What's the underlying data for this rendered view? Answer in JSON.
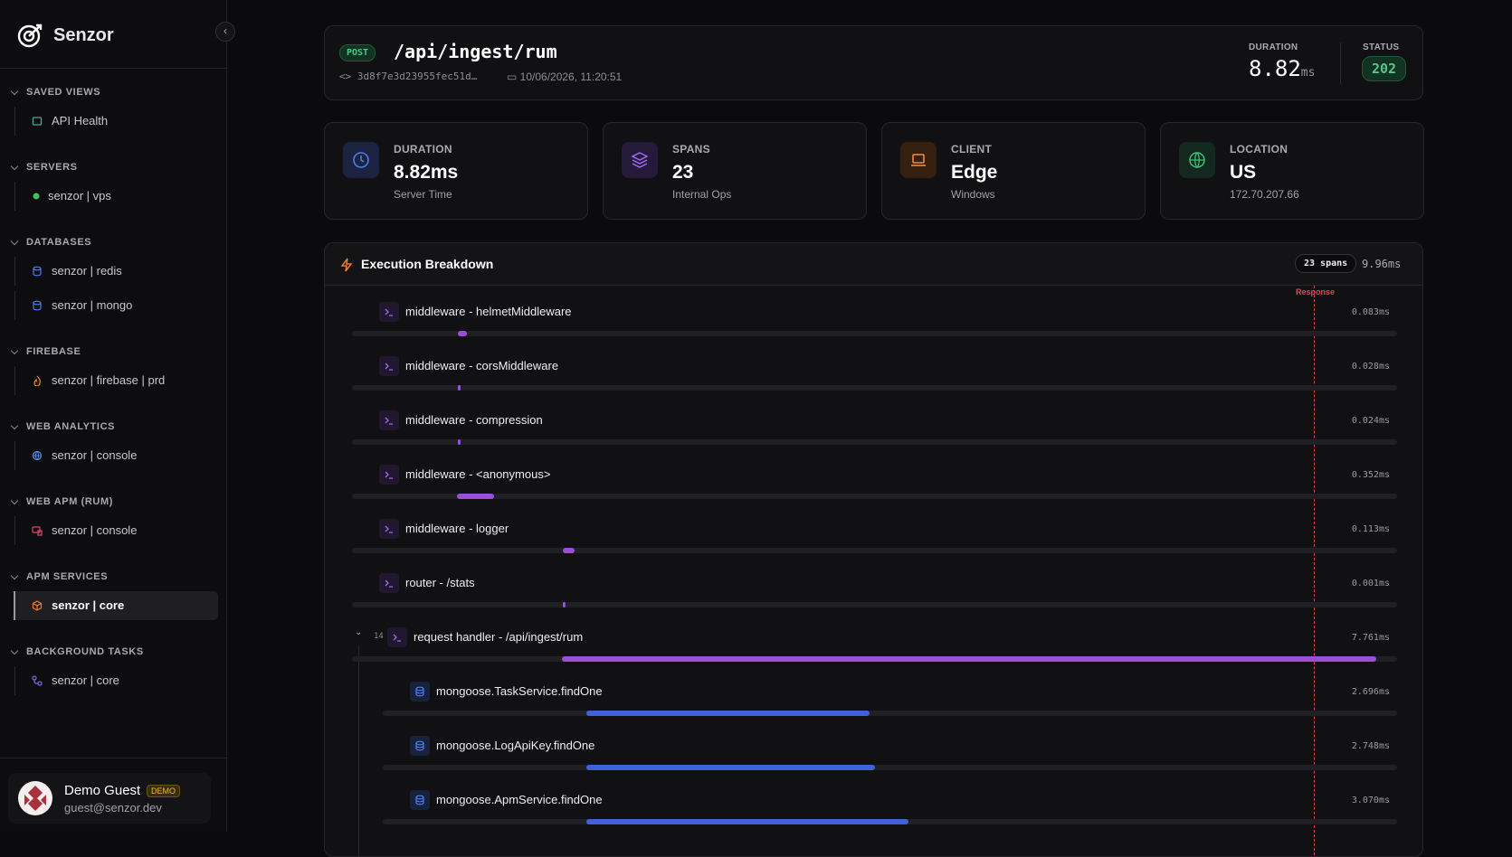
{
  "sidebar": {
    "brand": "Senzor",
    "sections": [
      {
        "title": "SAVED VIEWS",
        "items": [
          {
            "label": "API Health"
          }
        ]
      },
      {
        "title": "SERVERS",
        "items": [
          {
            "label": "senzor | vps"
          }
        ]
      },
      {
        "title": "DATABASES",
        "items": [
          {
            "label": "senzor | redis"
          },
          {
            "label": "senzor | mongo"
          }
        ]
      },
      {
        "title": "FIREBASE",
        "items": [
          {
            "label": "senzor | firebase | prd"
          }
        ]
      },
      {
        "title": "WEB ANALYTICS",
        "items": [
          {
            "label": "senzor | console"
          }
        ]
      },
      {
        "title": "WEB APM (RUM)",
        "items": [
          {
            "label": "senzor | console"
          }
        ]
      },
      {
        "title": "APM SERVICES",
        "items": [
          {
            "label": "senzor | core",
            "active": true
          }
        ]
      },
      {
        "title": "BACKGROUND TASKS",
        "items": [
          {
            "label": "senzor | core"
          }
        ]
      }
    ],
    "user": {
      "name": "Demo Guest",
      "badge": "DEMO",
      "email": "guest@senzor.dev"
    }
  },
  "request": {
    "method": "POST",
    "path": "/api/ingest/rum",
    "trace_id": "3d8f7e3d23955fec51d…",
    "timestamp": "10/06/2026, 11:20:51",
    "duration_label": "DURATION",
    "duration": "8.82",
    "duration_unit": "ms",
    "status_label": "STATUS",
    "status": "202"
  },
  "stats": [
    {
      "label": "DURATION",
      "value": "8.82ms",
      "sub": "Server Time"
    },
    {
      "label": "SPANS",
      "value": "23",
      "sub": "Internal Ops"
    },
    {
      "label": "CLIENT",
      "value": "Edge",
      "sub": "Windows"
    },
    {
      "label": "LOCATION",
      "value": "US",
      "sub": "172.70.207.66"
    }
  ],
  "breakdown": {
    "title": "Execution Breakdown",
    "span_count": "23 spans",
    "total": "9.96ms",
    "marker": "Response",
    "spans": [
      {
        "name": "middleware - helmetMiddleware",
        "duration": "0.083ms"
      },
      {
        "name": "middleware - corsMiddleware",
        "duration": "0.028ms"
      },
      {
        "name": "middleware - compression",
        "duration": "0.024ms"
      },
      {
        "name": "middleware - <anonymous>",
        "duration": "0.352ms"
      },
      {
        "name": "middleware - logger",
        "duration": "0.113ms"
      },
      {
        "name": "router - /stats",
        "duration": "0.001ms"
      },
      {
        "name": "request handler - /api/ingest/rum",
        "duration": "7.761ms",
        "children_count": "14",
        "children": [
          {
            "name": "mongoose.TaskService.findOne",
            "duration": "2.696ms"
          },
          {
            "name": "mongoose.LogApiKey.findOne",
            "duration": "2.748ms"
          },
          {
            "name": "mongoose.ApmService.findOne",
            "duration": "3.070ms"
          }
        ]
      }
    ]
  }
}
